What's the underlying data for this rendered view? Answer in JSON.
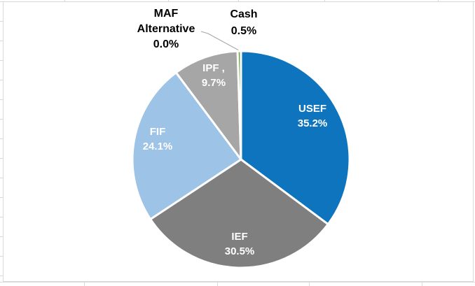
{
  "page": {
    "background_color": "#FFFFFF",
    "worksheet_gridline_color": "#D9D9D9",
    "chart_border_color": "#D9D9D9"
  },
  "chart_data": {
    "type": "pie",
    "title": "",
    "legend": "none",
    "value_format": "percent",
    "rotation": "starts at 12 o'clock, clockwise",
    "slice_border_color": "#FFFFFF",
    "categories": [
      "USEF",
      "IEF",
      "FIF",
      "IPF",
      "MAF Alternative",
      "Cash"
    ],
    "values": [
      35.2,
      30.5,
      24.1,
      9.7,
      0.0,
      0.5
    ],
    "slices": [
      {
        "name": "USEF",
        "value": 35.2,
        "color": "#0E74BD",
        "label_placement": "inside",
        "label_lines": [
          "USEF",
          "35.2%"
        ]
      },
      {
        "name": "IEF",
        "value": 30.5,
        "color": "#7F7F7F",
        "label_placement": "inside",
        "label_lines": [
          "IEF",
          "30.5%"
        ]
      },
      {
        "name": "FIF",
        "value": 24.1,
        "color": "#9DC3E6",
        "label_placement": "inside",
        "label_lines": [
          "FIF",
          "24.1%"
        ]
      },
      {
        "name": "IPF",
        "value": 9.7,
        "color": "#A6A6A6",
        "label_placement": "inside",
        "label_lines": [
          "IPF ,",
          "9.7%"
        ]
      },
      {
        "name": "MAF Alternative",
        "value": 0.0,
        "color": "#FFFFFF",
        "label_placement": "outside",
        "leader_line": true,
        "label_lines": [
          "MAF",
          "Alternative",
          "0.0%"
        ]
      },
      {
        "name": "Cash",
        "value": 0.5,
        "color": "#70AD47",
        "label_placement": "outside",
        "label_lines": [
          "Cash",
          "0.5%"
        ]
      }
    ],
    "leader_line_color": "#A6A6A6"
  }
}
